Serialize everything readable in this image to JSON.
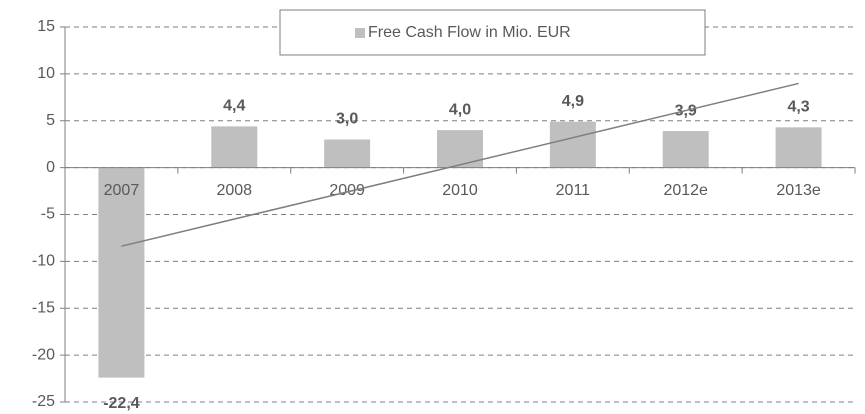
{
  "chart_data": {
    "type": "bar",
    "categories": [
      "2007",
      "2008",
      "2009",
      "2010",
      "2011",
      "2012e",
      "2013e"
    ],
    "series": [
      {
        "name": "Free Cash Flow in Mio. EUR",
        "color": "#bfbfbf",
        "values": [
          -22.4,
          4.4,
          3.0,
          4.0,
          4.9,
          3.9,
          4.3
        ],
        "value_labels": [
          "-22,4",
          "4,4",
          "3,0",
          "4,0",
          "4,9",
          "3,9",
          "4,3"
        ]
      }
    ],
    "ylim": [
      -25,
      15
    ],
    "yticks": [
      -25,
      -20,
      -15,
      -10,
      -5,
      0,
      5,
      10,
      15
    ],
    "grid": true,
    "trendline": "linear",
    "trendline_color": "#7f7f7f",
    "legend": "top"
  }
}
